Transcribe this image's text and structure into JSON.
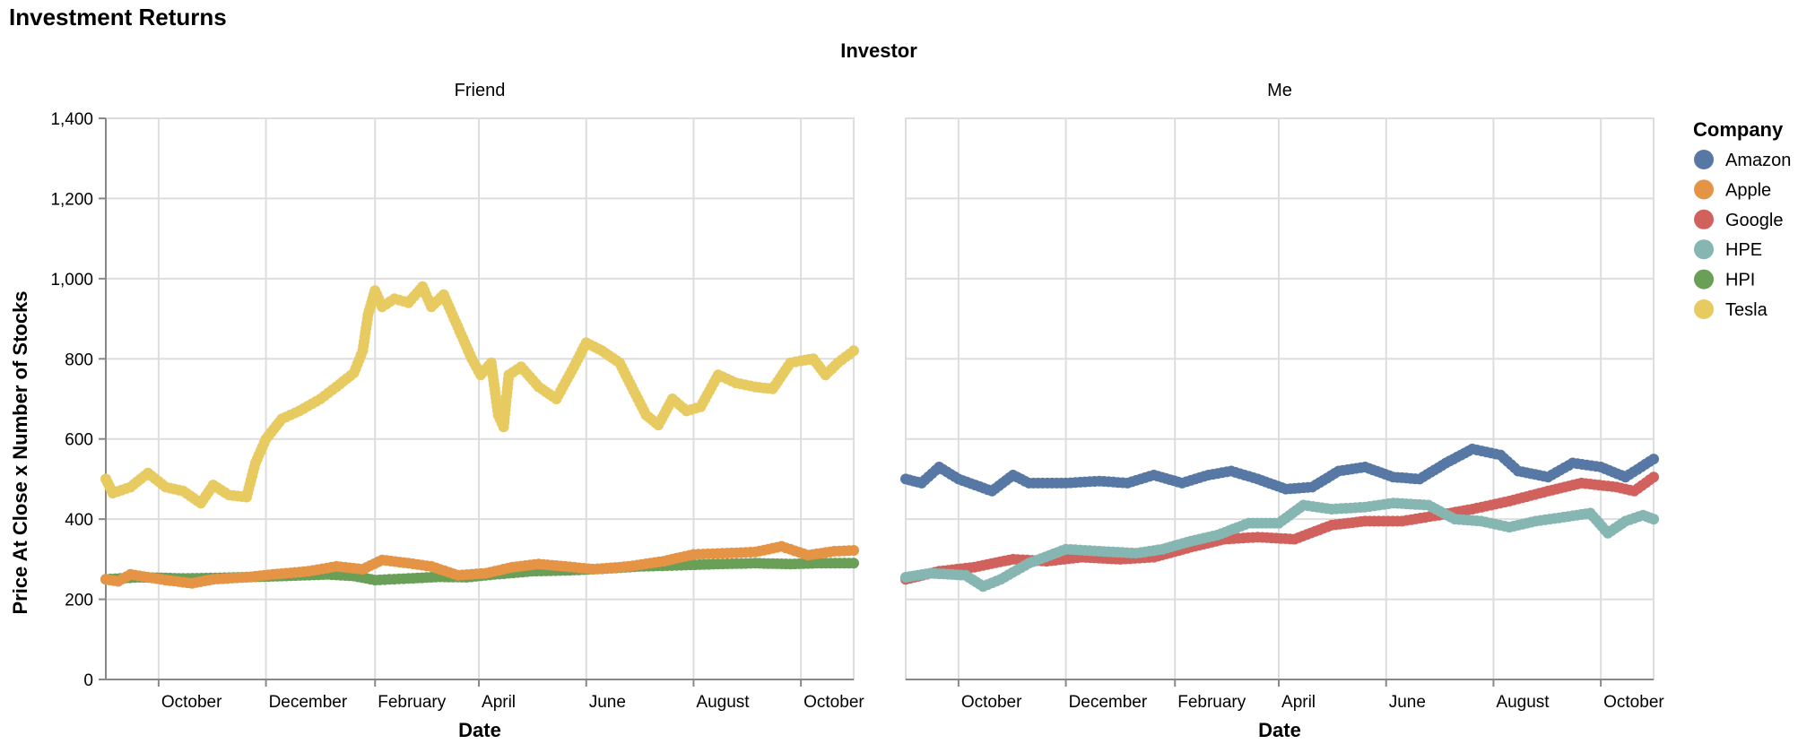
{
  "chart_data": {
    "type": "line",
    "title": "Investment Returns",
    "facet_title": "Investor",
    "ylabel": "Price At Close x Number of Stocks",
    "xlabel": "Date",
    "ylim": [
      0,
      1400
    ],
    "yticks": [
      0,
      200,
      400,
      600,
      800,
      1000,
      1200,
      1400
    ],
    "xlim": [
      "2020-09-01",
      "2021-10-31"
    ],
    "xticks": [
      {
        "date": "2020-10-01",
        "label": "October"
      },
      {
        "date": "2020-12-01",
        "label": "December"
      },
      {
        "date": "2021-02-01",
        "label": "February"
      },
      {
        "date": "2021-04-01",
        "label": "April"
      },
      {
        "date": "2021-06-01",
        "label": "June"
      },
      {
        "date": "2021-08-01",
        "label": "August"
      },
      {
        "date": "2021-10-01",
        "label": "October"
      }
    ],
    "grid": true,
    "legend": {
      "title": "Company",
      "placement": "right"
    },
    "companies": [
      {
        "name": "Amazon",
        "color": "#5778a4"
      },
      {
        "name": "Apple",
        "color": "#e49444"
      },
      {
        "name": "Google",
        "color": "#d1615d"
      },
      {
        "name": "HPE",
        "color": "#85b6b2"
      },
      {
        "name": "HPI",
        "color": "#6a9f58"
      },
      {
        "name": "Tesla",
        "color": "#e7ca60"
      }
    ],
    "facets": [
      {
        "name": "Friend",
        "series": [
          {
            "name": "HPI",
            "points": [
              [
                "2020-09-01",
                250
              ],
              [
                "2020-09-20",
                255
              ],
              [
                "2020-10-15",
                252
              ],
              [
                "2020-11-10",
                254
              ],
              [
                "2020-12-10",
                258
              ],
              [
                "2021-01-05",
                262
              ],
              [
                "2021-01-20",
                258
              ],
              [
                "2021-02-01",
                248
              ],
              [
                "2021-02-20",
                252
              ],
              [
                "2021-03-10",
                256
              ],
              [
                "2021-03-25",
                255
              ],
              [
                "2021-04-10",
                262
              ],
              [
                "2021-05-01",
                270
              ],
              [
                "2021-05-20",
                272
              ],
              [
                "2021-06-10",
                276
              ],
              [
                "2021-07-01",
                282
              ],
              [
                "2021-07-25",
                285
              ],
              [
                "2021-08-15",
                288
              ],
              [
                "2021-09-05",
                290
              ],
              [
                "2021-09-25",
                288
              ],
              [
                "2021-10-10",
                290
              ],
              [
                "2021-10-31",
                290
              ]
            ]
          },
          {
            "name": "Apple",
            "points": [
              [
                "2020-09-01",
                250
              ],
              [
                "2020-09-08",
                245
              ],
              [
                "2020-09-15",
                262
              ],
              [
                "2020-09-25",
                255
              ],
              [
                "2020-10-05",
                248
              ],
              [
                "2020-10-20",
                240
              ],
              [
                "2020-11-01",
                250
              ],
              [
                "2020-11-20",
                255
              ],
              [
                "2020-12-05",
                262
              ],
              [
                "2020-12-25",
                270
              ],
              [
                "2021-01-10",
                282
              ],
              [
                "2021-01-25",
                275
              ],
              [
                "2021-02-05",
                298
              ],
              [
                "2021-02-20",
                290
              ],
              [
                "2021-03-05",
                282
              ],
              [
                "2021-03-20",
                260
              ],
              [
                "2021-04-05",
                265
              ],
              [
                "2021-04-20",
                280
              ],
              [
                "2021-05-05",
                288
              ],
              [
                "2021-05-20",
                282
              ],
              [
                "2021-06-05",
                275
              ],
              [
                "2021-06-25",
                282
              ],
              [
                "2021-07-15",
                295
              ],
              [
                "2021-08-01",
                312
              ],
              [
                "2021-08-20",
                315
              ],
              [
                "2021-09-05",
                318
              ],
              [
                "2021-09-20",
                332
              ],
              [
                "2021-10-05",
                310
              ],
              [
                "2021-10-20",
                320
              ],
              [
                "2021-10-31",
                322
              ]
            ]
          },
          {
            "name": "Tesla",
            "points": [
              [
                "2020-09-01",
                500
              ],
              [
                "2020-09-05",
                465
              ],
              [
                "2020-09-15",
                480
              ],
              [
                "2020-09-25",
                515
              ],
              [
                "2020-10-05",
                480
              ],
              [
                "2020-10-15",
                470
              ],
              [
                "2020-10-25",
                440
              ],
              [
                "2020-11-01",
                485
              ],
              [
                "2020-11-10",
                460
              ],
              [
                "2020-11-20",
                455
              ],
              [
                "2020-11-25",
                540
              ],
              [
                "2020-12-01",
                600
              ],
              [
                "2020-12-10",
                650
              ],
              [
                "2020-12-20",
                670
              ],
              [
                "2021-01-01",
                700
              ],
              [
                "2021-01-10",
                730
              ],
              [
                "2021-01-20",
                765
              ],
              [
                "2021-01-25",
                820
              ],
              [
                "2021-01-28",
                910
              ],
              [
                "2021-02-01",
                970
              ],
              [
                "2021-02-05",
                930
              ],
              [
                "2021-02-12",
                950
              ],
              [
                "2021-02-20",
                940
              ],
              [
                "2021-02-28",
                980
              ],
              [
                "2021-03-05",
                930
              ],
              [
                "2021-03-12",
                960
              ],
              [
                "2021-03-20",
                880
              ],
              [
                "2021-03-28",
                800
              ],
              [
                "2021-04-02",
                760
              ],
              [
                "2021-04-08",
                790
              ],
              [
                "2021-04-12",
                660
              ],
              [
                "2021-04-15",
                630
              ],
              [
                "2021-04-18",
                760
              ],
              [
                "2021-04-25",
                780
              ],
              [
                "2021-05-05",
                730
              ],
              [
                "2021-05-15",
                700
              ],
              [
                "2021-05-25",
                780
              ],
              [
                "2021-06-01",
                840
              ],
              [
                "2021-06-10",
                820
              ],
              [
                "2021-06-20",
                790
              ],
              [
                "2021-06-28",
                720
              ],
              [
                "2021-07-05",
                660
              ],
              [
                "2021-07-12",
                635
              ],
              [
                "2021-07-20",
                700
              ],
              [
                "2021-07-28",
                670
              ],
              [
                "2021-08-05",
                680
              ],
              [
                "2021-08-15",
                760
              ],
              [
                "2021-08-25",
                740
              ],
              [
                "2021-09-05",
                730
              ],
              [
                "2021-09-15",
                725
              ],
              [
                "2021-09-25",
                790
              ],
              [
                "2021-10-01",
                795
              ],
              [
                "2021-10-08",
                800
              ],
              [
                "2021-10-15",
                760
              ],
              [
                "2021-10-22",
                790
              ],
              [
                "2021-10-31",
                820
              ]
            ]
          }
        ]
      },
      {
        "name": "Me",
        "series": [
          {
            "name": "Amazon",
            "points": [
              [
                "2020-09-01",
                500
              ],
              [
                "2020-09-10",
                490
              ],
              [
                "2020-09-20",
                530
              ],
              [
                "2020-10-01",
                500
              ],
              [
                "2020-10-20",
                470
              ],
              [
                "2020-11-01",
                510
              ],
              [
                "2020-11-10",
                490
              ],
              [
                "2020-12-01",
                490
              ],
              [
                "2020-12-20",
                495
              ],
              [
                "2021-01-05",
                490
              ],
              [
                "2021-01-20",
                510
              ],
              [
                "2021-02-05",
                490
              ],
              [
                "2021-02-20",
                510
              ],
              [
                "2021-03-05",
                520
              ],
              [
                "2021-03-20",
                500
              ],
              [
                "2021-04-05",
                475
              ],
              [
                "2021-04-20",
                480
              ],
              [
                "2021-05-05",
                520
              ],
              [
                "2021-05-20",
                530
              ],
              [
                "2021-06-05",
                505
              ],
              [
                "2021-06-20",
                500
              ],
              [
                "2021-07-05",
                540
              ],
              [
                "2021-07-20",
                575
              ],
              [
                "2021-08-05",
                560
              ],
              [
                "2021-08-15",
                520
              ],
              [
                "2021-09-01",
                505
              ],
              [
                "2021-09-15",
                540
              ],
              [
                "2021-10-01",
                530
              ],
              [
                "2021-10-15",
                505
              ],
              [
                "2021-10-31",
                550
              ]
            ]
          },
          {
            "name": "Google",
            "points": [
              [
                "2020-09-01",
                250
              ],
              [
                "2020-09-20",
                270
              ],
              [
                "2020-10-10",
                280
              ],
              [
                "2020-11-01",
                300
              ],
              [
                "2020-11-20",
                295
              ],
              [
                "2020-12-10",
                305
              ],
              [
                "2021-01-01",
                300
              ],
              [
                "2021-01-20",
                305
              ],
              [
                "2021-02-10",
                330
              ],
              [
                "2021-03-01",
                350
              ],
              [
                "2021-03-20",
                355
              ],
              [
                "2021-04-10",
                350
              ],
              [
                "2021-05-01",
                385
              ],
              [
                "2021-05-20",
                395
              ],
              [
                "2021-06-10",
                395
              ],
              [
                "2021-07-01",
                410
              ],
              [
                "2021-07-20",
                425
              ],
              [
                "2021-08-10",
                445
              ],
              [
                "2021-09-01",
                470
              ],
              [
                "2021-09-20",
                490
              ],
              [
                "2021-10-10",
                480
              ],
              [
                "2021-10-20",
                470
              ],
              [
                "2021-10-31",
                505
              ]
            ]
          },
          {
            "name": "HPE",
            "points": [
              [
                "2020-09-01",
                255
              ],
              [
                "2020-09-15",
                265
              ],
              [
                "2020-10-05",
                260
              ],
              [
                "2020-10-15",
                232
              ],
              [
                "2020-10-25",
                250
              ],
              [
                "2020-11-10",
                290
              ],
              [
                "2020-12-01",
                325
              ],
              [
                "2020-12-20",
                320
              ],
              [
                "2021-01-10",
                315
              ],
              [
                "2021-01-25",
                325
              ],
              [
                "2021-02-10",
                345
              ],
              [
                "2021-02-25",
                360
              ],
              [
                "2021-03-15",
                390
              ],
              [
                "2021-04-01",
                390
              ],
              [
                "2021-04-15",
                435
              ],
              [
                "2021-05-01",
                425
              ],
              [
                "2021-05-20",
                430
              ],
              [
                "2021-06-05",
                440
              ],
              [
                "2021-06-25",
                435
              ],
              [
                "2021-07-10",
                400
              ],
              [
                "2021-07-25",
                395
              ],
              [
                "2021-08-10",
                380
              ],
              [
                "2021-08-25",
                395
              ],
              [
                "2021-09-10",
                405
              ],
              [
                "2021-09-25",
                415
              ],
              [
                "2021-10-05",
                365
              ],
              [
                "2021-10-15",
                395
              ],
              [
                "2021-10-25",
                410
              ],
              [
                "2021-10-31",
                400
              ]
            ]
          }
        ]
      }
    ]
  }
}
